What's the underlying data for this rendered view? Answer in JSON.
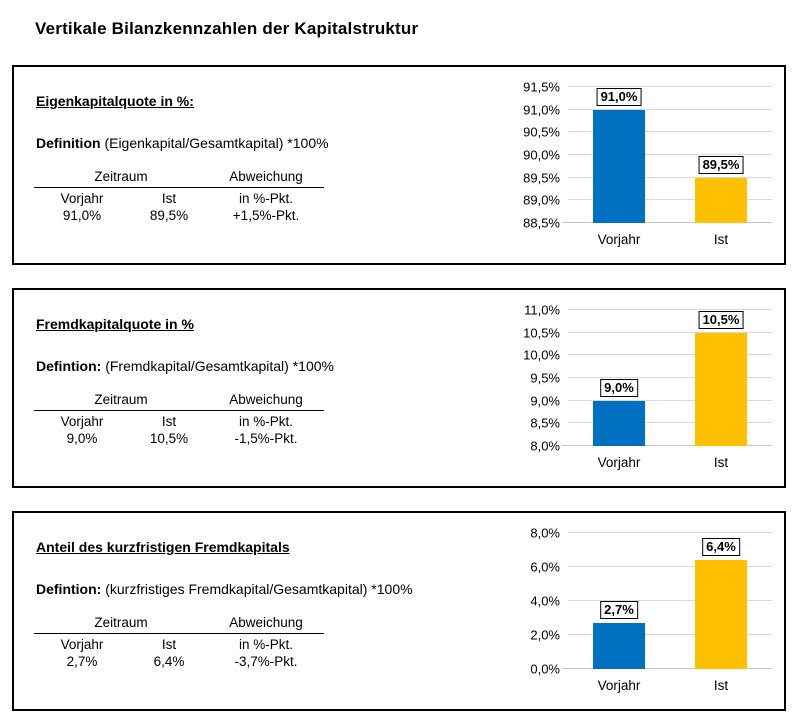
{
  "page_title": "Vertikale Bilanzkennzahlen der Kapitalstruktur",
  "colors": {
    "bar_vorjahr": "#0070C0",
    "bar_ist": "#FFC000",
    "gridline": "#D9D9D9",
    "panel_border": "#000000",
    "text": "#000000"
  },
  "panels": [
    {
      "title": "Eigenkapitalquote in %:",
      "definition_label": "Definition",
      "definition_text": "(Eigenkapital/Gesamtkapital) *100%",
      "table": {
        "group_headers": [
          "Zeitraum",
          "Abweichung"
        ],
        "col_headers": [
          "Vorjahr",
          "Ist",
          "in %-Pkt."
        ],
        "rows": [
          [
            "91,0%",
            "89,5%",
            "+1,5%-Pkt."
          ]
        ]
      }
    },
    {
      "title": "Fremdkapitalquote in %",
      "definition_label": "Defintion:",
      "definition_text": "(Fremdkapital/Gesamtkapital) *100%",
      "table": {
        "group_headers": [
          "Zeitraum",
          "Abweichung"
        ],
        "col_headers": [
          "Vorjahr",
          "Ist",
          "in %-Pkt."
        ],
        "rows": [
          [
            "9,0%",
            "10,5%",
            "-1,5%-Pkt."
          ]
        ]
      }
    },
    {
      "title": "Anteil des kurzfristigen Fremdkapitals",
      "definition_label": "Defintion:",
      "definition_text": "(kurzfristiges Fremdkapital/Gesamtkapital) *100%",
      "table": {
        "group_headers": [
          "Zeitraum",
          "Abweichung"
        ],
        "col_headers": [
          "Vorjahr",
          "Ist",
          "in %-Pkt."
        ],
        "rows": [
          [
            "2,7%",
            "6,4%",
            "-3,7%-Pkt."
          ]
        ]
      }
    }
  ],
  "chart_data": [
    {
      "type": "bar",
      "title": "Eigenkapitalquote in %",
      "categories": [
        "Vorjahr",
        "Ist"
      ],
      "values": [
        91.0,
        89.5
      ],
      "value_labels": [
        "91,0%",
        "89,5%"
      ],
      "bar_colors": [
        "#0070C0",
        "#FFC000"
      ],
      "ylim": [
        88.5,
        91.5
      ],
      "ytick_step": 0.5,
      "yticks": [
        {
          "v": 88.5,
          "label": "88,5%"
        },
        {
          "v": 89.0,
          "label": "89,0%"
        },
        {
          "v": 89.5,
          "label": "89,5%"
        },
        {
          "v": 90.0,
          "label": "90,0%"
        },
        {
          "v": 90.5,
          "label": "90,5%"
        },
        {
          "v": 91.0,
          "label": "91,0%"
        },
        {
          "v": 91.5,
          "label": "91,5%"
        }
      ],
      "grid": true,
      "legend": false
    },
    {
      "type": "bar",
      "title": "Fremdkapitalquote in %",
      "categories": [
        "Vorjahr",
        "Ist"
      ],
      "values": [
        9.0,
        10.5
      ],
      "value_labels": [
        "9,0%",
        "10,5%"
      ],
      "bar_colors": [
        "#0070C0",
        "#FFC000"
      ],
      "ylim": [
        8.0,
        11.0
      ],
      "ytick_step": 0.5,
      "yticks": [
        {
          "v": 8.0,
          "label": "8,0%"
        },
        {
          "v": 8.5,
          "label": "8,5%"
        },
        {
          "v": 9.0,
          "label": "9,0%"
        },
        {
          "v": 9.5,
          "label": "9,5%"
        },
        {
          "v": 10.0,
          "label": "10,0%"
        },
        {
          "v": 10.5,
          "label": "10,5%"
        },
        {
          "v": 11.0,
          "label": "11,0%"
        }
      ],
      "grid": true,
      "legend": false
    },
    {
      "type": "bar",
      "title": "Anteil des kurzfristigen Fremdkapitals",
      "categories": [
        "Vorjahr",
        "Ist"
      ],
      "values": [
        2.7,
        6.4
      ],
      "value_labels": [
        "2,7%",
        "6,4%"
      ],
      "bar_colors": [
        "#0070C0",
        "#FFC000"
      ],
      "ylim": [
        0.0,
        8.0
      ],
      "ytick_step": 2.0,
      "yticks": [
        {
          "v": 0.0,
          "label": "0,0%"
        },
        {
          "v": 2.0,
          "label": "2,0%"
        },
        {
          "v": 4.0,
          "label": "4,0%"
        },
        {
          "v": 6.0,
          "label": "6,0%"
        },
        {
          "v": 8.0,
          "label": "8,0%"
        }
      ],
      "grid": true,
      "legend": false
    }
  ]
}
